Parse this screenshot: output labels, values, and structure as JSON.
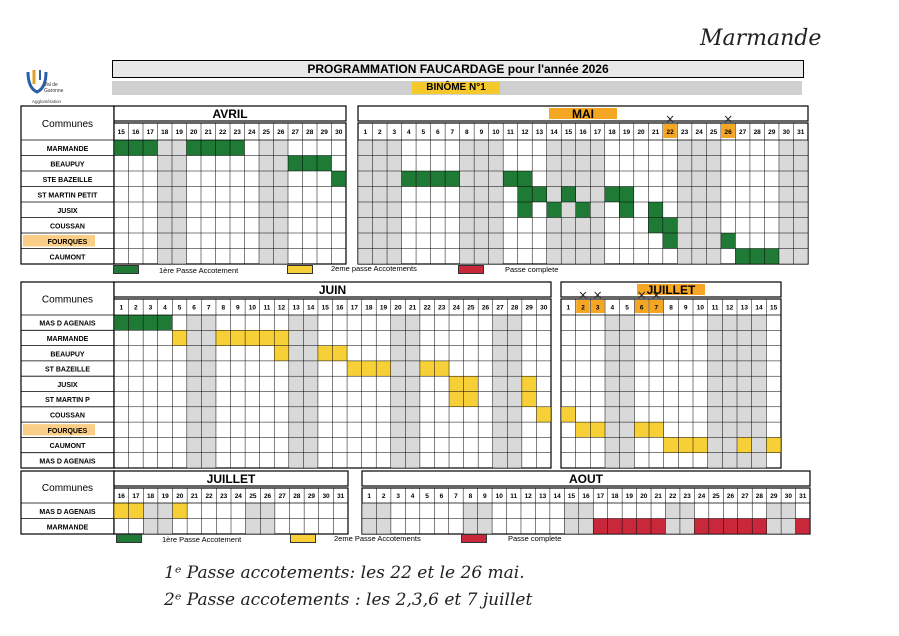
{
  "handwritten_top": "Marmande",
  "logo": {
    "line1": "Val de",
    "line2": "Garonne",
    "line3": "Agglomération"
  },
  "title": "PROGRAMMATION FAUCARDAGE pour l'année 2026",
  "binome": "BINÔME N°1",
  "colors": {
    "green": "#1f7a36",
    "yellow": "#f7d038",
    "red": "#c8283a",
    "shade": "#d9d9d9",
    "orange": "#f5a623"
  },
  "legend": {
    "first": "1ère Passe Accotement",
    "second": "2eme passe Accotements",
    "complete": "Passe complete"
  },
  "legend2": {
    "first": "1ère Passe Accotement",
    "second": "2eme Passe Accotements",
    "complete": "Passe complete"
  },
  "col_header": "Communes",
  "section1": {
    "months": [
      {
        "name": "AVRIL",
        "days": [
          15,
          16,
          17,
          18,
          19,
          20,
          21,
          22,
          23,
          24,
          25,
          26,
          27,
          28,
          29,
          30
        ],
        "shaded": [
          18,
          19,
          25,
          26
        ]
      },
      {
        "name": "MAI",
        "days": [
          1,
          2,
          3,
          4,
          5,
          6,
          7,
          8,
          9,
          10,
          11,
          12,
          13,
          14,
          15,
          16,
          17,
          18,
          19,
          20,
          21,
          22,
          23,
          24,
          25,
          26,
          27,
          28,
          29,
          30,
          31
        ],
        "shaded": [
          1,
          2,
          3,
          8,
          9,
          10,
          14,
          15,
          16,
          17,
          23,
          24,
          25,
          30,
          31
        ],
        "highlight": [
          22,
          26
        ],
        "crossed": [
          22,
          26
        ]
      }
    ],
    "rows": [
      {
        "label": "MARMANDE",
        "cells": [
          [
            "g",
            0,
            [
              15,
              16,
              17
            ]
          ],
          [
            "g",
            0,
            [
              20,
              21,
              22,
              23
            ]
          ]
        ]
      },
      {
        "label": "BEAUPUY",
        "cells": [
          [
            "g",
            0,
            [
              27,
              28,
              29
            ]
          ]
        ]
      },
      {
        "label": "STE BAZEILLE",
        "cells": [
          [
            "g",
            0,
            [
              30
            ]
          ],
          [
            "g",
            1,
            [
              4,
              5,
              6,
              7
            ]
          ],
          [
            "g",
            1,
            [
              11,
              12
            ]
          ]
        ]
      },
      {
        "label": "ST MARTIN PETIT",
        "cells": [
          [
            "g",
            1,
            [
              12,
              13
            ]
          ],
          [
            "g",
            1,
            [
              15
            ]
          ],
          [
            "g",
            1,
            [
              18,
              19
            ]
          ]
        ]
      },
      {
        "label": "JUSIX",
        "cells": [
          [
            "g",
            1,
            [
              12
            ]
          ],
          [
            "g",
            1,
            [
              14
            ]
          ],
          [
            "g",
            1,
            [
              16
            ]
          ],
          [
            "g",
            1,
            [
              19
            ]
          ],
          [
            "g",
            1,
            [
              21
            ]
          ]
        ]
      },
      {
        "label": "COUSSAN",
        "cells": [
          [
            "g",
            1,
            [
              21,
              22
            ]
          ]
        ]
      },
      {
        "label": "FOURQUES",
        "highlight": true,
        "cells": [
          [
            "g",
            1,
            [
              22
            ]
          ],
          [
            "g",
            1,
            [
              26
            ]
          ]
        ]
      },
      {
        "label": "CAUMONT",
        "cells": [
          [
            "g",
            1,
            [
              27,
              28,
              29
            ]
          ]
        ]
      }
    ]
  },
  "section2": {
    "months": [
      {
        "name": "JUIN",
        "days": [
          1,
          2,
          3,
          4,
          5,
          6,
          7,
          8,
          9,
          10,
          11,
          12,
          13,
          14,
          15,
          16,
          17,
          18,
          19,
          20,
          21,
          22,
          23,
          24,
          25,
          26,
          27,
          28,
          29,
          30
        ],
        "shaded": [
          6,
          7,
          13,
          14,
          20,
          21,
          27,
          28
        ]
      },
      {
        "name": "JUILLET",
        "days": [
          1,
          2,
          3,
          4,
          5,
          6,
          7,
          8,
          9,
          10,
          11,
          12,
          13,
          14,
          15
        ],
        "shaded": [
          4,
          5,
          11,
          12,
          13,
          14
        ],
        "highlight": [
          2,
          3,
          6,
          7
        ],
        "crossed": [
          2,
          3,
          6,
          7
        ]
      }
    ],
    "rows": [
      {
        "label": "MAS D AGENAIS",
        "cells": [
          [
            "g",
            0,
            [
              1,
              2,
              3,
              4
            ]
          ]
        ]
      },
      {
        "label": "MARMANDE",
        "cells": [
          [
            "y",
            0,
            [
              5
            ]
          ],
          [
            "y",
            0,
            [
              8,
              9,
              10,
              11,
              12
            ]
          ]
        ]
      },
      {
        "label": "BEAUPUY",
        "cells": [
          [
            "y",
            0,
            [
              12
            ]
          ],
          [
            "y",
            0,
            [
              15,
              16
            ]
          ]
        ]
      },
      {
        "label": "ST BAZEILLE",
        "cells": [
          [
            "y",
            0,
            [
              17,
              18,
              19
            ]
          ],
          [
            "y",
            0,
            [
              22,
              23
            ]
          ]
        ]
      },
      {
        "label": "JUSIX",
        "cells": [
          [
            "y",
            0,
            [
              24,
              25
            ]
          ],
          [
            "y",
            0,
            [
              29
            ]
          ]
        ]
      },
      {
        "label": "ST MARTIN P",
        "cells": [
          [
            "y",
            0,
            [
              24,
              25
            ]
          ],
          [
            "y",
            0,
            [
              29
            ]
          ]
        ]
      },
      {
        "label": "COUSSAN",
        "cells": [
          [
            "y",
            0,
            [
              30
            ]
          ],
          [
            "y",
            1,
            [
              1
            ]
          ]
        ]
      },
      {
        "label": "FOURQUES",
        "highlight": true,
        "cells": [
          [
            "y",
            1,
            [
              2,
              3
            ]
          ],
          [
            "y",
            1,
            [
              6,
              7
            ]
          ]
        ]
      },
      {
        "label": "CAUMONT",
        "cells": [
          [
            "y",
            1,
            [
              8,
              9,
              10
            ]
          ],
          [
            "y",
            1,
            [
              13
            ]
          ],
          [
            "y",
            1,
            [
              15
            ]
          ]
        ]
      },
      {
        "label": "MAS D AGENAIS",
        "cells": []
      }
    ]
  },
  "section3": {
    "months": [
      {
        "name": "JUILLET",
        "days": [
          16,
          17,
          18,
          19,
          20,
          21,
          22,
          23,
          24,
          25,
          26,
          27,
          28,
          29,
          30,
          31
        ],
        "shaded": [
          18,
          19,
          25,
          26
        ]
      },
      {
        "name": "AOUT",
        "days": [
          1,
          2,
          3,
          4,
          5,
          6,
          7,
          8,
          9,
          10,
          11,
          12,
          13,
          14,
          15,
          16,
          17,
          18,
          19,
          20,
          21,
          22,
          23,
          24,
          25,
          26,
          27,
          28,
          29,
          30,
          31
        ],
        "shaded": [
          1,
          2,
          8,
          9,
          15,
          16,
          22,
          23,
          29,
          30
        ]
      }
    ],
    "rows": [
      {
        "label": "MAS D AGENAIS",
        "cells": [
          [
            "y",
            0,
            [
              16,
              17
            ]
          ],
          [
            "y",
            0,
            [
              20
            ]
          ]
        ]
      },
      {
        "label": "MARMANDE",
        "cells": [
          [
            "r",
            1,
            [
              17,
              18,
              19,
              20,
              21
            ]
          ],
          [
            "r",
            1,
            [
              24,
              25,
              26,
              27,
              28
            ]
          ],
          [
            "r",
            1,
            [
              31
            ]
          ]
        ]
      }
    ]
  },
  "notes": {
    "line1": "1ᵉ Passe accotements: les 22 et le 26 mai.",
    "line2": "2ᵉ Passe accotements : les 2,3,6 et 7 juillet"
  }
}
